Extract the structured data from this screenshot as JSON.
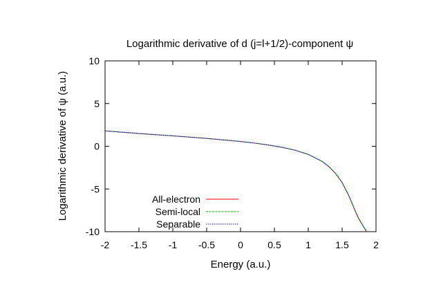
{
  "chart_data": {
    "type": "line",
    "title": "Logarithmic derivative of d (j=l+1/2)-component ψ",
    "xlabel": "Energy (a.u.)",
    "ylabel": "Logarithmic derivative of ψ (a.u.)",
    "xlim": [
      -2,
      2
    ],
    "ylim": [
      -10,
      10
    ],
    "xticks": [
      "-2",
      "-1.5",
      "-1",
      "-0.5",
      "0",
      "0.5",
      "1",
      "1.5",
      "2"
    ],
    "yticks": [
      "10",
      "5",
      "0",
      "-5",
      "-10"
    ],
    "grid": false,
    "legend_position": "bottom-left",
    "x": [
      -2.0,
      -1.8,
      -1.6,
      -1.4,
      -1.2,
      -1.0,
      -0.8,
      -0.6,
      -0.4,
      -0.2,
      0.0,
      0.2,
      0.4,
      0.6,
      0.8,
      1.0,
      1.2,
      1.3,
      1.4,
      1.5,
      1.6,
      1.65,
      1.7,
      1.75,
      1.8,
      1.83,
      1.85,
      1.86
    ],
    "series": [
      {
        "name": "All-electron",
        "color": "#ff0000",
        "values": [
          1.8,
          1.68,
          1.56,
          1.44,
          1.33,
          1.22,
          1.1,
          0.98,
          0.85,
          0.71,
          0.56,
          0.38,
          0.16,
          -0.1,
          -0.45,
          -0.95,
          -1.75,
          -2.35,
          -3.15,
          -4.25,
          -5.8,
          -6.75,
          -7.7,
          -8.55,
          -9.2,
          -9.6,
          -9.85,
          -10.0
        ]
      },
      {
        "name": "Semi-local",
        "color": "#00b000",
        "values": [
          1.8,
          1.68,
          1.56,
          1.44,
          1.33,
          1.22,
          1.1,
          0.98,
          0.85,
          0.71,
          0.56,
          0.38,
          0.16,
          -0.1,
          -0.45,
          -0.95,
          -1.75,
          -2.35,
          -3.15,
          -4.25,
          -5.8,
          -6.75,
          -7.7,
          -8.55,
          -9.2,
          -9.6,
          -9.85,
          -10.0
        ]
      },
      {
        "name": "Separable",
        "color": "#0000ff",
        "values": [
          1.8,
          1.68,
          1.56,
          1.44,
          1.33,
          1.22,
          1.1,
          0.98,
          0.85,
          0.71,
          0.56,
          0.38,
          0.16,
          -0.1,
          -0.45,
          -0.95,
          -1.75,
          -2.35,
          -3.15,
          -4.25,
          -5.8,
          -6.75,
          -7.7,
          -8.55,
          -9.2,
          -9.6,
          -9.85,
          -10.0
        ]
      }
    ]
  }
}
